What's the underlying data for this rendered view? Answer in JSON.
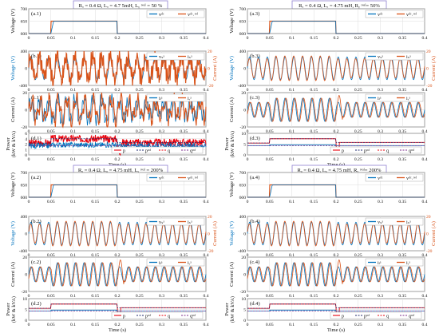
{
  "colors": {
    "blue": "#0072BD",
    "orange": "#D95319",
    "red": "#E8000B",
    "purple": "#7E2F8E",
    "navy": "#1f2a6e",
    "axis": "#222222",
    "grid": "#dcdcdc",
    "titlebox": "#8f7fd0"
  },
  "quadrants": [
    {
      "key": "q1",
      "title": "Rₐ = 0.4 Ω, Lₐ = 4.7 5mH, Lᵧ ʳᵉᵃˡ = 50 %",
      "x_label": "Time (s)",
      "panels": [
        {
          "tag": "(a.1)",
          "type": "step",
          "ylabel": [
            "Voltage (V)"
          ],
          "yticks": [
            "600",
            "650",
            "700"
          ],
          "ylim": [
            600,
            700
          ],
          "legend": [
            "vᵈᶜ",
            "vᵈᶜ˒ʳᵉᶠ"
          ]
        },
        {
          "tag": "(b.1)",
          "type": "wave",
          "ylabel": [
            "Voltage (V)"
          ],
          "right_label": "Current (A)",
          "yticks": [
            "-400",
            "0",
            "400"
          ],
          "rticks": [
            "-20",
            "0",
            "20"
          ],
          "legend": [
            "vₛᵃ",
            "iₛᵃ"
          ],
          "distort": 2.2
        },
        {
          "tag": "(c.1)",
          "type": "wave2",
          "ylabel": [
            "Current (A)"
          ],
          "yticks": [
            "-20",
            "0",
            "20"
          ],
          "legend": [
            "iₗᵃ",
            "iᵣᵃ"
          ],
          "distort": 2.0
        },
        {
          "tag": "(d.1)",
          "type": "power",
          "ylabel": [
            "Power",
            "(kW & kVA)"
          ],
          "yticks": [
            "0",
            "1",
            "2",
            "4",
            "6"
          ],
          "legend": [
            "p",
            "pʳᵉᶠ",
            "q",
            "qʳᵉᶠ"
          ],
          "noisy": true
        }
      ]
    },
    {
      "key": "q3",
      "title": "Rₐ = 0.4 Ω, Lₐ = 4.75 mH, Rᵧ ʳᵉᵃˡ= 50%",
      "x_label": "Time (s)",
      "panels": [
        {
          "tag": "(a.3)",
          "type": "step",
          "ylabel": [
            "Voltage (V)"
          ],
          "yticks": [
            "600",
            "650",
            "700"
          ],
          "ylim": [
            600,
            700
          ],
          "legend": [
            "vᵈᶜ",
            "vᵈᶜ˒ʳᵉᶠ"
          ]
        },
        {
          "tag": "(b.3)",
          "type": "wave",
          "ylabel": [
            "Voltage (V)"
          ],
          "right_label": "Current (A)",
          "yticks": [
            "-400",
            "0",
            "400"
          ],
          "rticks": [
            "-20",
            "0",
            "20"
          ],
          "legend": [
            "vₛᵃ",
            "iₛᵃ"
          ],
          "distort": 0
        },
        {
          "tag": "(c.3)",
          "type": "wave2",
          "ylabel": [
            "Current (A)"
          ],
          "yticks": [
            "-20",
            "0",
            "20"
          ],
          "legend": [
            "iₗᵃ",
            "iᵣᵃ"
          ],
          "distort": 0
        },
        {
          "tag": "(d.3)",
          "type": "power",
          "ylabel": [
            "Power",
            "(kW & kVA)"
          ],
          "yticks": [
            "0",
            "5",
            "10"
          ],
          "legend": [
            "p",
            "pʳᵉᶠ",
            "q",
            "qʳᵉᶠ"
          ],
          "noisy": false
        }
      ]
    },
    {
      "key": "q2",
      "title": "Rₐ = 0.4 Ω, Lₐ = 4.75 mH, Lᵧ ʳᵉᵃˡ = 200%",
      "x_label": "Time (s)",
      "panels": [
        {
          "tag": "(a.2)",
          "type": "step",
          "ylabel": [
            "Voltage (V)"
          ],
          "yticks": [
            "600",
            "650",
            "700"
          ],
          "ylim": [
            600,
            700
          ],
          "legend": [
            "vᵈᶜ",
            "vᵈᶜ˒ʳᵉᶠ"
          ]
        },
        {
          "tag": "(b.2)",
          "type": "wave",
          "ylabel": [
            "Voltage (V)"
          ],
          "right_label": "Current (A)",
          "yticks": [
            "-400",
            "0",
            "400"
          ],
          "rticks": [
            "-20",
            "0",
            "20"
          ],
          "legend": [
            "vₛᵃ",
            "iₛᵃ"
          ],
          "distort": 0
        },
        {
          "tag": "(c.2)",
          "type": "wave2",
          "ylabel": [
            "Current (A)"
          ],
          "yticks": [
            "-20",
            "0",
            "20"
          ],
          "legend": [
            "iₗᵃ",
            "iᵣᵃ"
          ],
          "distort": 0
        },
        {
          "tag": "(d.2)",
          "type": "power",
          "ylabel": [
            "Power",
            "(kW & kVA)"
          ],
          "yticks": [
            "0",
            "5",
            "10"
          ],
          "legend": [
            "p",
            "pʳᵉᶠ",
            "q",
            "qʳᵉᶠ"
          ],
          "noisy": false
        }
      ]
    },
    {
      "key": "q4",
      "title": "Rₐ = 0.4 Ω, Lₐ = 4.75 mH, Rᵧ ʳᵉᵃˡ= 200%",
      "x_label": "Time (s)",
      "panels": [
        {
          "tag": "(a.4)",
          "type": "step",
          "ylabel": [
            "Voltage (V)"
          ],
          "yticks": [
            "600",
            "650",
            "700"
          ],
          "ylim": [
            600,
            700
          ],
          "legend": [
            "vᵈᶜ",
            "vᵈᶜ˒ʳᵉᶠ"
          ]
        },
        {
          "tag": "(b.4)",
          "type": "wave",
          "ylabel": [
            "Voltage (V)"
          ],
          "right_label": "Current (A)",
          "yticks": [
            "-400",
            "0",
            "400"
          ],
          "rticks": [
            "-20",
            "0",
            "20"
          ],
          "legend": [
            "vₛᵃ",
            "iₛᵃ"
          ],
          "distort": 0
        },
        {
          "tag": "(c.4)",
          "type": "wave2",
          "ylabel": [
            "Current (A)"
          ],
          "yticks": [
            "-20",
            "0",
            "20"
          ],
          "legend": [
            "iₗᵃ",
            "iᵣᵃ"
          ],
          "distort": 0
        },
        {
          "tag": "(d.4)",
          "type": "power",
          "ylabel": [
            "Power",
            "(kW & kVA)"
          ],
          "yticks": [
            "0",
            "5",
            "10"
          ],
          "legend": [
            "p",
            "pʳᵉᶠ",
            "q",
            "qʳᵉᶠ"
          ],
          "noisy": false
        }
      ]
    }
  ],
  "chart_data": {
    "type": "line",
    "x_ticks": [
      "0",
      "0.05",
      "0.1",
      "0.15",
      "0.2",
      "0.25",
      "0.3",
      "0.35",
      "0.4"
    ],
    "x_range": [
      0,
      0.4
    ],
    "dc_voltage_step": {
      "low": 600,
      "high": 650,
      "t_on": 0.05,
      "t_off": 0.2
    },
    "grid": true
  }
}
